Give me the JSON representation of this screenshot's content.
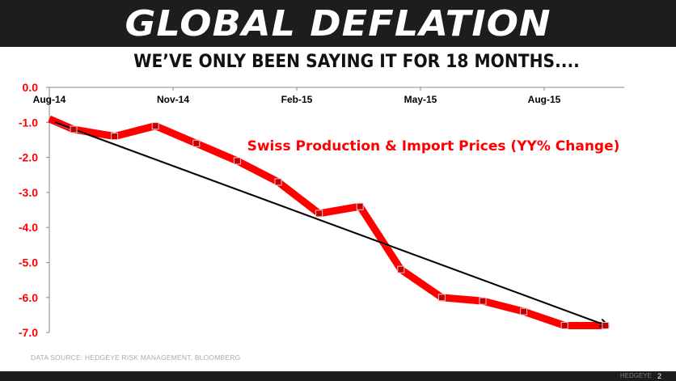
{
  "header": {
    "title": "GLOBAL DEFLATION",
    "subtitle": "WE’VE ONLY BEEN SAYING IT FOR 18 MONTHS...."
  },
  "footer": {
    "source": "DATA SOURCE: HEDGEYE RISK MANAGEMENT,  BLOOMBERG",
    "brand": "HEDGEYE",
    "page": "2"
  },
  "colors": {
    "series": "#ff0000",
    "marker": "#c00000",
    "trend": "#000000",
    "bar": "#1d1d1f"
  },
  "chart_data": {
    "type": "line",
    "title": "GLOBAL DEFLATION",
    "subtitle": "WE’VE ONLY BEEN SAYING IT FOR 18 MONTHS....",
    "xlabel": "",
    "ylabel": "",
    "x_tick_labels": [
      "Aug-14",
      "Nov-14",
      "Feb-15",
      "May-15",
      "Aug-15"
    ],
    "y_tick_labels": [
      "0.0",
      "-1.0",
      "-2.0",
      "-3.0",
      "-4.0",
      "-5.0",
      "-6.0",
      "-7.0"
    ],
    "ylim": [
      -7.0,
      0.0
    ],
    "x_axis_position": "top",
    "grid": false,
    "legend": "annotation",
    "series": [
      {
        "name": "Swiss Production & Import Prices (YY% Change)",
        "x": [
          "Aug-14",
          "Sep-14",
          "Oct-14",
          "Nov-14",
          "Dec-14",
          "Jan-15",
          "Feb-15",
          "Mar-15",
          "Apr-15",
          "May-15",
          "Jun-15",
          "Jul-15",
          "Aug-15",
          "Sep-15",
          "Oct-15"
        ],
        "values": [
          -0.9,
          -1.2,
          -1.4,
          -1.1,
          -1.6,
          -2.1,
          -2.7,
          -3.6,
          -3.4,
          -5.2,
          -6.0,
          -6.1,
          -6.4,
          -6.8,
          -6.8
        ]
      }
    ],
    "annotations": [
      {
        "type": "trend-arrow",
        "from": {
          "x": "Aug-14",
          "y": -1.0
        },
        "to": {
          "x": "Oct-15",
          "y": -6.8
        }
      },
      {
        "type": "text",
        "text": "Swiss Production & Import Prices (YY% Change)"
      }
    ]
  }
}
